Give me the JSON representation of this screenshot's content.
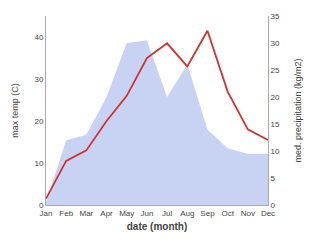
{
  "chart_data": {
    "type": "line",
    "xlabel": "date (month)",
    "ylabel": "max temp (C)",
    "y2label": "med. precipitation (kg/m2)",
    "categories": [
      "Jan",
      "Feb",
      "Mar",
      "Apr",
      "May",
      "Jun",
      "Jul",
      "Aug",
      "Sep",
      "Oct",
      "Nov",
      "Dec"
    ],
    "series": [
      {
        "type": "area",
        "axis": "y2",
        "color": "#aabbee",
        "values": [
          0.5,
          12.0,
          13.0,
          20.0,
          30.0,
          30.5,
          20.0,
          26.0,
          14.0,
          10.5,
          9.5,
          9.5
        ]
      },
      {
        "type": "line",
        "color": "#cc3333",
        "values": [
          1.5,
          10.5,
          13.0,
          20.0,
          26.0,
          35.0,
          38.5,
          33.0,
          41.5,
          27.0,
          18.0,
          15.5
        ]
      }
    ],
    "ylim": [
      0,
      45
    ],
    "yticks": [
      0,
      10,
      20,
      30,
      40
    ],
    "y2lim": [
      0,
      35
    ],
    "y2ticks": [
      0,
      5,
      10,
      15,
      20,
      25,
      30,
      35
    ],
    "grid": false
  }
}
